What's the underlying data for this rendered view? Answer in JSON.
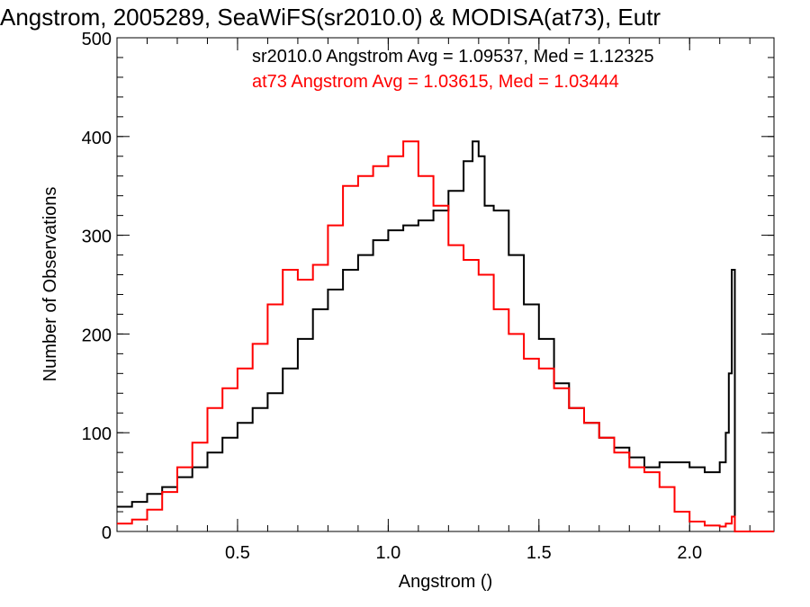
{
  "chart_data": {
    "type": "line",
    "title": "Angstrom, 2005289, SeaWiFS(sr2010.0) & MODISA(at73), Eutr",
    "xlabel": "Angstrom ()",
    "ylabel": "Number of Observations",
    "xlim": [
      0.1,
      2.28
    ],
    "ylim": [
      0,
      500
    ],
    "xticks": [
      {
        "value": 0.5,
        "label": "0.5"
      },
      {
        "value": 1.0,
        "label": "1.0"
      },
      {
        "value": 1.5,
        "label": "1.5"
      },
      {
        "value": 2.0,
        "label": "2.0"
      }
    ],
    "yticks": [
      {
        "value": 0,
        "label": "0"
      },
      {
        "value": 100,
        "label": "100"
      },
      {
        "value": 200,
        "label": "200"
      },
      {
        "value": 300,
        "label": "300"
      },
      {
        "value": 400,
        "label": "400"
      },
      {
        "value": 500,
        "label": "500"
      }
    ],
    "grid": false,
    "legend_placement": "top-right",
    "annotations": [
      {
        "text": "sr2010.0 Angstrom Avg = 1.09537, Med = 1.12325",
        "color": "#000000"
      },
      {
        "text": "at73 Angstrom Avg = 1.03615, Med = 1.03444",
        "color": "#ff0000"
      }
    ],
    "series": [
      {
        "name": "sr2010.0",
        "color": "#000000",
        "x": [
          0.1,
          0.15,
          0.2,
          0.25,
          0.3,
          0.35,
          0.4,
          0.45,
          0.5,
          0.55,
          0.6,
          0.65,
          0.7,
          0.75,
          0.8,
          0.85,
          0.9,
          0.95,
          1.0,
          1.05,
          1.1,
          1.15,
          1.2,
          1.25,
          1.28,
          1.3,
          1.32,
          1.35,
          1.4,
          1.45,
          1.5,
          1.55,
          1.6,
          1.65,
          1.7,
          1.75,
          1.8,
          1.85,
          1.9,
          1.95,
          2.0,
          2.05,
          2.1,
          2.12,
          2.13,
          2.14,
          2.15,
          2.16,
          2.2,
          2.28
        ],
        "y": [
          25,
          30,
          38,
          45,
          55,
          65,
          80,
          95,
          110,
          125,
          140,
          165,
          195,
          225,
          245,
          265,
          280,
          295,
          305,
          310,
          315,
          325,
          345,
          375,
          395,
          380,
          330,
          325,
          280,
          230,
          195,
          150,
          125,
          110,
          95,
          85,
          75,
          65,
          70,
          70,
          65,
          60,
          70,
          100,
          160,
          265,
          0,
          0,
          0,
          0
        ]
      },
      {
        "name": "at73",
        "color": "#ff0000",
        "x": [
          0.1,
          0.15,
          0.2,
          0.25,
          0.3,
          0.35,
          0.4,
          0.45,
          0.5,
          0.55,
          0.6,
          0.65,
          0.7,
          0.75,
          0.8,
          0.85,
          0.9,
          0.95,
          1.0,
          1.05,
          1.1,
          1.15,
          1.2,
          1.25,
          1.3,
          1.35,
          1.4,
          1.45,
          1.5,
          1.55,
          1.6,
          1.65,
          1.7,
          1.75,
          1.8,
          1.85,
          1.9,
          1.95,
          2.0,
          2.05,
          2.1,
          2.12,
          2.14,
          2.15,
          2.16,
          2.2,
          2.28
        ],
        "y": [
          8,
          12,
          22,
          40,
          65,
          90,
          125,
          145,
          165,
          190,
          230,
          265,
          255,
          270,
          310,
          350,
          360,
          370,
          380,
          395,
          360,
          330,
          290,
          275,
          260,
          225,
          200,
          175,
          165,
          145,
          125,
          110,
          95,
          80,
          65,
          60,
          45,
          20,
          10,
          6,
          5,
          8,
          15,
          0,
          0,
          0,
          0
        ]
      }
    ]
  }
}
